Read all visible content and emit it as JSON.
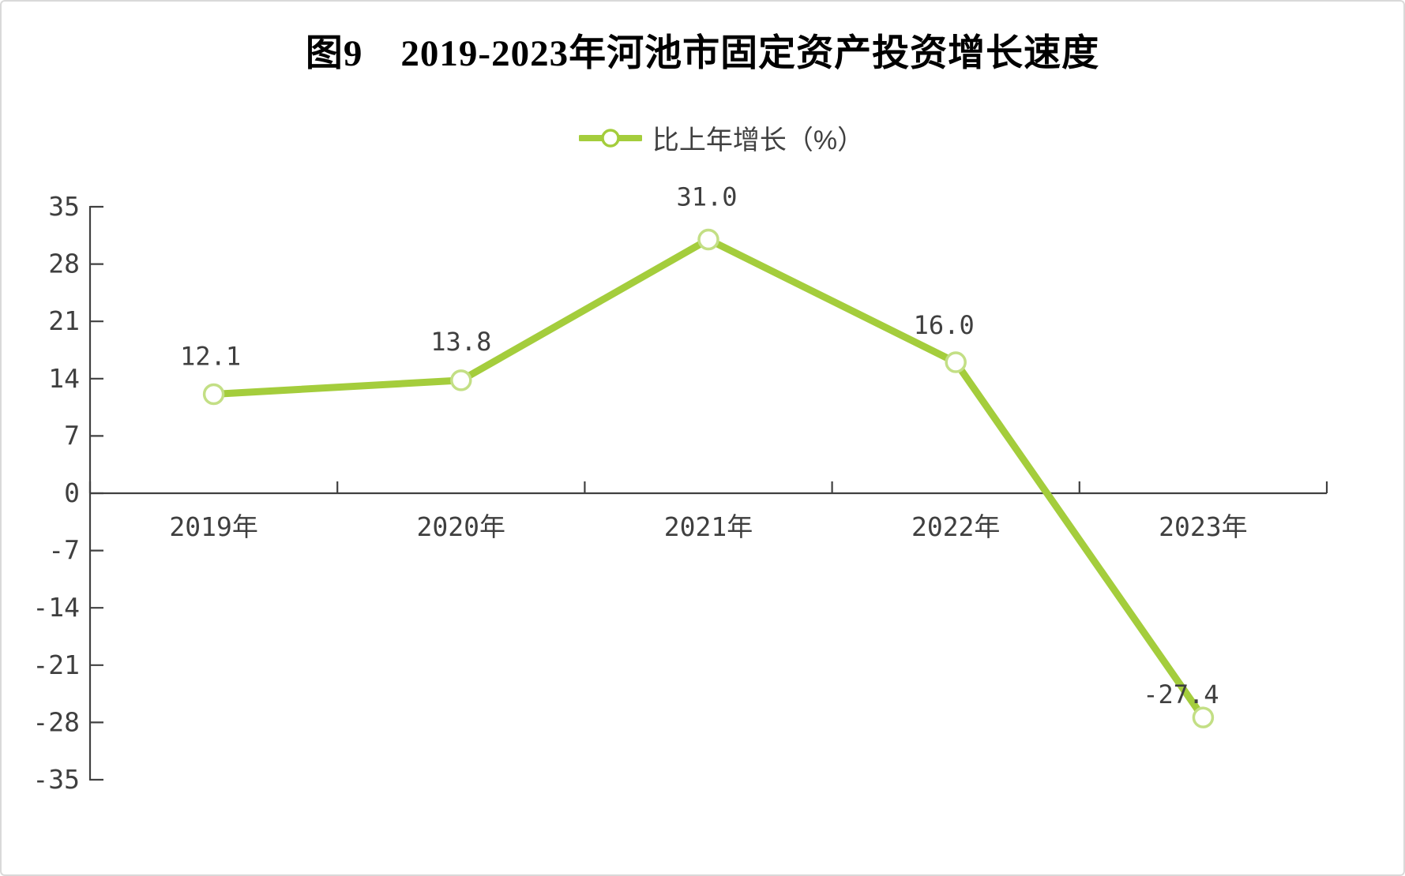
{
  "chart": {
    "title": "图9　2019-2023年河池市固定资产投资增长速度",
    "legend": {
      "label": "比上年增长（%）",
      "marker": "line-circle-icon"
    },
    "colors": {
      "line": "#A4CD3C",
      "marker_fill": "#FFFFFF",
      "marker_stroke": "#C3DF85",
      "axis": "#404040",
      "tick_text": "#3F3F3F",
      "data_label_text": "#3F3F3F",
      "title_text": "#000000"
    }
  },
  "chart_data": {
    "type": "line",
    "title": "图9　2019-2023年河池市固定资产投资增长速度",
    "categories": [
      "2019年",
      "2020年",
      "2021年",
      "2022年",
      "2023年"
    ],
    "series": [
      {
        "name": "比上年增长（%）",
        "values": [
          12.1,
          13.8,
          31.0,
          16.0,
          -27.4
        ]
      }
    ],
    "data_labels": [
      "12.1",
      "13.8",
      "31.0",
      "16.0",
      "-27.4"
    ],
    "xlabel": "",
    "ylabel": "",
    "ylim": [
      -35,
      35
    ],
    "ytick_step": 7,
    "yticks": [
      35,
      28,
      21,
      14,
      7,
      0,
      -7,
      -14,
      -21,
      -28,
      -35
    ],
    "grid": false,
    "legend_position": "top",
    "marker_style": "open-circle"
  }
}
